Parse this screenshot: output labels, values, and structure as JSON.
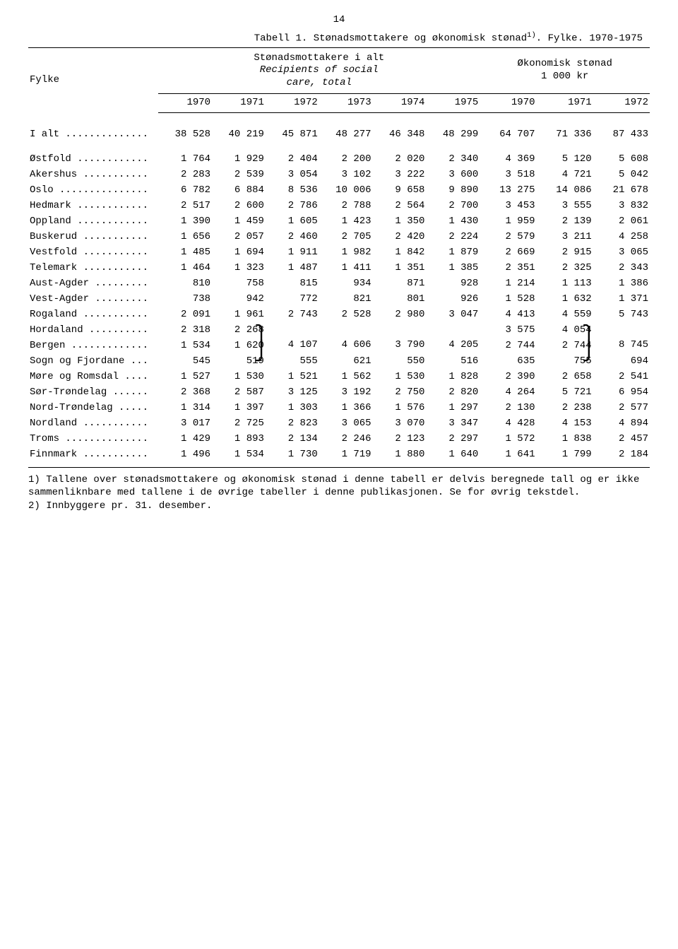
{
  "page_number": "14",
  "table_title_pre": "Tabell 1.  Stønadsmottakere og økonomisk stønad",
  "table_title_sup": "1)",
  "table_title_post": ".  Fylke.  1970-1975",
  "header": {
    "fylke": "Fylke",
    "group1_line1": "Stønadsmottakere i alt",
    "group1_line2": "Recipients of social",
    "group1_line3": "care, total",
    "group2_line1": "Økonomisk stønad",
    "group2_line2": "1 000 kr"
  },
  "years_g1": [
    "1970",
    "1971",
    "1972",
    "1973",
    "1974",
    "1975"
  ],
  "years_g2": [
    "1970",
    "1971",
    "1972"
  ],
  "rows": [
    {
      "label": "I alt ..............",
      "v": [
        "38 528",
        "40 219",
        "45 871",
        "48 277",
        "46 348",
        "48 299",
        "64 707",
        "71 336",
        "87 433"
      ],
      "first": true
    },
    {
      "label": "Østfold ............",
      "v": [
        "1 764",
        "1 929",
        "2 404",
        "2 200",
        "2 020",
        "2 340",
        "4 369",
        "5 120",
        "5 608"
      ],
      "gap": true
    },
    {
      "label": "Akershus ...........",
      "v": [
        "2 283",
        "2 539",
        "3 054",
        "3 102",
        "3 222",
        "3 600",
        "3 518",
        "4 721",
        "5 042"
      ]
    },
    {
      "label": "Oslo ...............",
      "v": [
        "6 782",
        "6 884",
        "8 536",
        "10 006",
        "9 658",
        "9 890",
        "13 275",
        "14 086",
        "21 678"
      ]
    },
    {
      "label": "Hedmark ............",
      "v": [
        "2 517",
        "2 600",
        "2 786",
        "2 788",
        "2 564",
        "2 700",
        "3 453",
        "3 555",
        "3 832"
      ]
    },
    {
      "label": "Oppland ............",
      "v": [
        "1 390",
        "1 459",
        "1 605",
        "1 423",
        "1 350",
        "1 430",
        "1 959",
        "2 139",
        "2 061"
      ]
    },
    {
      "label": "Buskerud ...........",
      "v": [
        "1 656",
        "2 057",
        "2 460",
        "2 705",
        "2 420",
        "2 224",
        "2 579",
        "3 211",
        "4 258"
      ]
    },
    {
      "label": "Vestfold ...........",
      "v": [
        "1 485",
        "1 694",
        "1 911",
        "1 982",
        "1 842",
        "1 879",
        "2 669",
        "2 915",
        "3 065"
      ]
    },
    {
      "label": "Telemark ...........",
      "v": [
        "1 464",
        "1 323",
        "1 487",
        "1 411",
        "1 351",
        "1 385",
        "2 351",
        "2 325",
        "2 343"
      ]
    },
    {
      "label": "Aust-Agder .........",
      "v": [
        "810",
        "758",
        "815",
        "934",
        "871",
        "928",
        "1 214",
        "1 113",
        "1 386"
      ]
    },
    {
      "label": "Vest-Agder .........",
      "v": [
        "738",
        "942",
        "772",
        "821",
        "801",
        "926",
        "1 528",
        "1 632",
        "1 371"
      ]
    },
    {
      "label": "Rogaland ...........",
      "v": [
        "2 091",
        "1 961",
        "2 743",
        "2 528",
        "2 980",
        "3 047",
        "4 413",
        "4 559",
        "5 743"
      ]
    },
    {
      "label": "Hordaland ..........",
      "v": [
        "2 318",
        "2 268",
        "",
        "",
        "",
        "",
        "3 575",
        "4 054",
        ""
      ],
      "brace_top": true,
      "brace_vals": {
        "c2": "4 107",
        "c3": "4 606",
        "c4": "3 790",
        "c5": "4 205",
        "c8": "8 745"
      }
    },
    {
      "label": "Bergen .............",
      "v": [
        "1 534",
        "1 620",
        "",
        "",
        "",
        "",
        "2 744",
        "2 744",
        ""
      ],
      "brace_bottom": true
    },
    {
      "label": "Sogn og Fjordane ...",
      "v": [
        "545",
        "519",
        "555",
        "621",
        "550",
        "516",
        "635",
        "755",
        "694"
      ]
    },
    {
      "label": "Møre og Romsdal ....",
      "v": [
        "1 527",
        "1 530",
        "1 521",
        "1 562",
        "1 530",
        "1 828",
        "2 390",
        "2 658",
        "2 541"
      ]
    },
    {
      "label": "Sør-Trøndelag ......",
      "v": [
        "2 368",
        "2 587",
        "3 125",
        "3 192",
        "2 750",
        "2 820",
        "4 264",
        "5 721",
        "6 954"
      ]
    },
    {
      "label": "Nord-Trøndelag .....",
      "v": [
        "1 314",
        "1 397",
        "1 303",
        "1 366",
        "1 576",
        "1 297",
        "2 130",
        "2 238",
        "2 577"
      ]
    },
    {
      "label": "Nordland ...........",
      "v": [
        "3 017",
        "2 725",
        "2 823",
        "3 065",
        "3 070",
        "3 347",
        "4 428",
        "4 153",
        "4 894"
      ]
    },
    {
      "label": "Troms ..............",
      "v": [
        "1 429",
        "1 893",
        "2 134",
        "2 246",
        "2 123",
        "2 297",
        "1 572",
        "1 838",
        "2 457"
      ]
    },
    {
      "label": "Finnmark ...........",
      "v": [
        "1 496",
        "1 534",
        "1 730",
        "1 719",
        "1 880",
        "1 640",
        "1 641",
        "1 799",
        "2 184"
      ],
      "last": true
    }
  ],
  "footnotes": {
    "f1": "1) Tallene over stønadsmottakere og økonomisk stønad i denne tabell er delvis beregnede tall og er ikke sammenliknbare med tallene i de øvrige tabeller i denne publikasjonen.  Se for øvrig tekstdel.",
    "f2": "2) Innbyggere pr. 31. desember."
  }
}
